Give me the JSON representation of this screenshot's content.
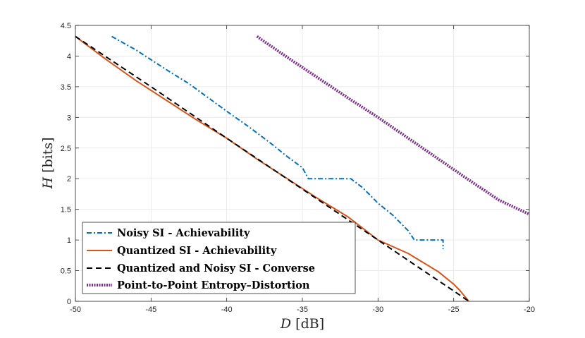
{
  "chart_data": {
    "type": "line",
    "title": "",
    "xlabel": "D [dB]",
    "ylabel": "H [bits]",
    "xlabel_var": "D",
    "xlabel_unit": "[dB]",
    "ylabel_var": "H",
    "ylabel_unit": "[bits]",
    "xlim": [
      -50,
      -20
    ],
    "ylim": [
      0,
      4.5
    ],
    "xticks": [
      -50,
      -45,
      -40,
      -35,
      -30,
      -25,
      -20
    ],
    "yticks": [
      0,
      0.5,
      1,
      1.5,
      2,
      2.5,
      3,
      3.5,
      4,
      4.5
    ],
    "xtick_labels": [
      "-50",
      "-45",
      "-40",
      "-35",
      "-30",
      "-25",
      "-20"
    ],
    "ytick_labels": [
      "0",
      "0.5",
      "1",
      "1.5",
      "2",
      "2.5",
      "3",
      "3.5",
      "4",
      "4.5"
    ],
    "grid": true,
    "legend_position": "bottom-left",
    "series": [
      {
        "name": "Noisy SI - Achievability",
        "color": "#0072BD",
        "style": "dashdot",
        "x": [
          -47.6,
          -46,
          -44,
          -42.5,
          -41,
          -40,
          -38.5,
          -37,
          -36,
          -35,
          -34.6,
          -33,
          -31.8,
          -31,
          -30,
          -29,
          -28,
          -27.6,
          -25.7,
          -25.7
        ],
        "y": [
          4.32,
          4.1,
          3.78,
          3.55,
          3.28,
          3.1,
          2.84,
          2.56,
          2.36,
          2.18,
          2.0,
          2.0,
          2.0,
          1.85,
          1.6,
          1.4,
          1.15,
          1.0,
          1.0,
          0.85
        ]
      },
      {
        "name": "Quantized SI - Achievability",
        "color": "#D95319",
        "style": "solid",
        "x": [
          -50,
          -48,
          -46,
          -44,
          -42,
          -40,
          -38,
          -36,
          -34,
          -32,
          -30,
          -28,
          -26,
          -25,
          -24.6,
          -24.2,
          -24.0
        ],
        "y": [
          4.32,
          3.95,
          3.6,
          3.28,
          2.96,
          2.66,
          2.32,
          2.0,
          1.68,
          1.38,
          1.0,
          0.78,
          0.48,
          0.28,
          0.18,
          0.06,
          0.0
        ]
      },
      {
        "name": "Quantized and Noisy SI - Converse",
        "color": "#000000",
        "style": "dashed",
        "x": [
          -50,
          -45,
          -40,
          -35,
          -30,
          -27,
          -25,
          -24
        ],
        "y": [
          4.32,
          3.5,
          2.66,
          1.83,
          1.0,
          0.5,
          0.17,
          0.0
        ]
      },
      {
        "name": "Point-to-Point Entropy–Distortion",
        "color": "#7E2F8E",
        "style": "dotted",
        "x": [
          -38,
          -36,
          -34,
          -32,
          -30,
          -28,
          -26,
          -24,
          -22,
          -20
        ],
        "y": [
          4.32,
          3.98,
          3.65,
          3.32,
          3.0,
          2.66,
          2.32,
          1.98,
          1.65,
          1.42
        ]
      }
    ]
  }
}
